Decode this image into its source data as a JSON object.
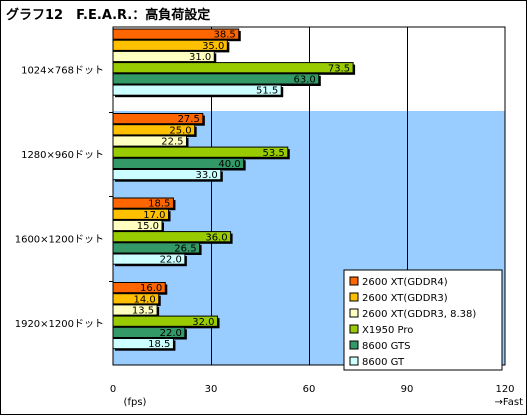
{
  "chart_data": {
    "type": "bar",
    "orientation": "horizontal",
    "title": "グラフ12　F.E.A.R.：高負荷設定",
    "categories": [
      "1024×768ドット",
      "1280×960ドット",
      "1600×1200ドット",
      "1920×1200ドット"
    ],
    "series": [
      {
        "name": "2600 XT(GDDR4)",
        "color": "#ff6600",
        "values": [
          38.5,
          27.5,
          18.5,
          16.0
        ]
      },
      {
        "name": "2600 XT(GDDR3)",
        "color": "#ffc000",
        "values": [
          35.0,
          25.0,
          17.0,
          14.0
        ]
      },
      {
        "name": "2600 XT(GDDR3, 8.38)",
        "color": "#ffffc0",
        "values": [
          31.0,
          22.5,
          15.0,
          13.5
        ]
      },
      {
        "name": "X1950 Pro",
        "color": "#99cc00",
        "values": [
          73.5,
          53.5,
          36.0,
          32.0
        ]
      },
      {
        "name": "8600 GTS",
        "color": "#339966",
        "values": [
          63.0,
          40.0,
          26.5,
          22.0
        ]
      },
      {
        "name": "8600 GT",
        "color": "#ccffff",
        "values": [
          51.5,
          33.0,
          22.0,
          18.5
        ]
      }
    ],
    "value_labels": [
      [
        "38.5",
        "27.5",
        "18.5",
        "16.0"
      ],
      [
        "35.0",
        "25.0",
        "17.0",
        "14.0"
      ],
      [
        "31.0",
        "22.5",
        "15.0",
        "13.5"
      ],
      [
        "73.5",
        "53.5",
        "36.0",
        "32.0"
      ],
      [
        "63.0",
        "40.0",
        "26.5",
        "22.0"
      ],
      [
        "51.5",
        "33.0",
        "22.0",
        "18.5"
      ]
    ],
    "xlim": [
      0,
      120
    ],
    "xticks": [
      0,
      30,
      60,
      90,
      120
    ],
    "xtick_labels": [
      "0",
      "30",
      "60",
      "90",
      "120"
    ],
    "xlabel": "(fps)",
    "direction_note": "→Fast",
    "grid": true,
    "legend_position": "bottom-right",
    "colors": {
      "plot_background": "#99ccff",
      "first_band_background": "#ffffff",
      "gridline": "#000000",
      "bar_outline": "#000000",
      "bar_shadow": "#000000"
    }
  }
}
